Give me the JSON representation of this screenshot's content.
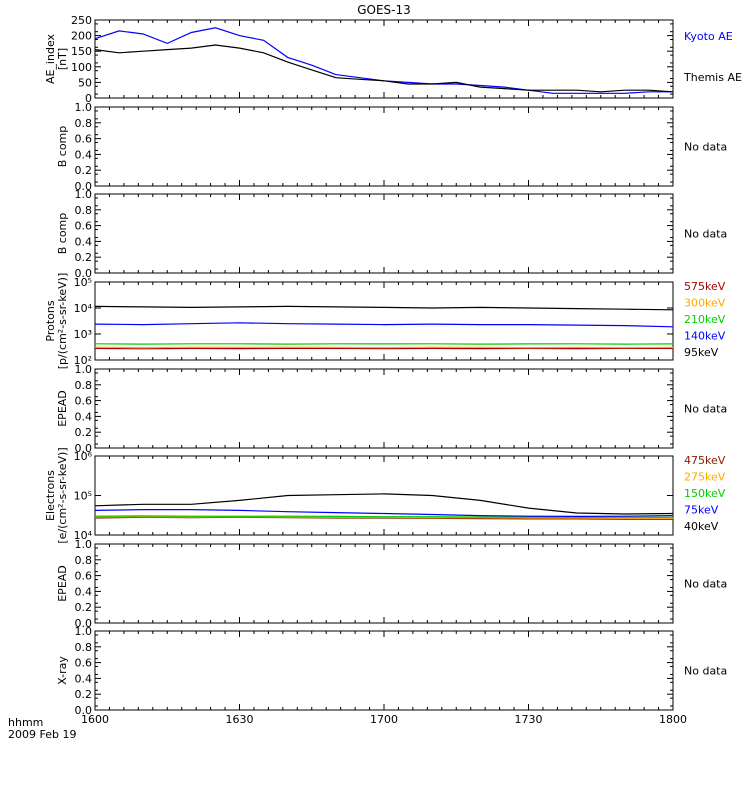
{
  "title": "GOES-13",
  "footer": {
    "xlabel": "hhmm",
    "date": "2009 Feb 19"
  },
  "x_ticks": [
    "1600",
    "1630",
    "1700",
    "1730",
    "1800"
  ],
  "colors": {
    "black": "#000000",
    "blue": "#0000ff",
    "green": "#00cc00",
    "orange": "#ffaa00",
    "red": "#aa0000",
    "brown": "#8b2000"
  },
  "chart_data": [
    {
      "type": "line",
      "ylabel": [
        "AE_index",
        "[nT]"
      ],
      "ylim": [
        0,
        250
      ],
      "y_ticks": [
        "0",
        "50",
        "100",
        "150",
        "200",
        "250"
      ],
      "x": [
        "1600",
        "1605",
        "1610",
        "1615",
        "1620",
        "1625",
        "1630",
        "1635",
        "1640",
        "1645",
        "1650",
        "1655",
        "1700",
        "1705",
        "1710",
        "1715",
        "1720",
        "1725",
        "1730",
        "1735",
        "1740",
        "1745",
        "1750",
        "1755",
        "1800"
      ],
      "series": [
        {
          "name": "Kyoto AE",
          "color": "#0000ff",
          "values": [
            190,
            215,
            205,
            175,
            210,
            225,
            200,
            185,
            130,
            105,
            75,
            65,
            55,
            50,
            45,
            45,
            40,
            35,
            25,
            15,
            15,
            15,
            15,
            20,
            20
          ]
        },
        {
          "name": "Themis AE",
          "color": "#000000",
          "values": [
            155,
            145,
            150,
            155,
            160,
            170,
            160,
            145,
            115,
            90,
            65,
            60,
            55,
            45,
            45,
            50,
            35,
            30,
            25,
            25,
            25,
            20,
            25,
            25,
            20
          ]
        }
      ]
    },
    {
      "type": "empty",
      "ylabel": [
        "B comp"
      ],
      "ylim": [
        0,
        1
      ],
      "y_ticks": [
        "0.0",
        "0.2",
        "0.4",
        "0.6",
        "0.8",
        "1.0"
      ],
      "note": "No data"
    },
    {
      "type": "empty",
      "ylabel": [
        "B comp"
      ],
      "ylim": [
        0,
        1
      ],
      "y_ticks": [
        "0.0",
        "0.2",
        "0.4",
        "0.6",
        "0.8",
        "1.0"
      ],
      "note": "No data"
    },
    {
      "type": "line",
      "log": true,
      "ylabel": [
        "Protons",
        "[p/(cm²-s-sr-keV)]"
      ],
      "ylim": [
        100,
        100000
      ],
      "y_ticks": [
        "10²",
        "10³",
        "10⁴",
        "10⁵"
      ],
      "x": [
        "1600",
        "1610",
        "1620",
        "1630",
        "1640",
        "1650",
        "1700",
        "1710",
        "1720",
        "1730",
        "1740",
        "1750",
        "1800"
      ],
      "series": [
        {
          "name": "575keV",
          "color": "#aa0000",
          "values": [
            280,
            270,
            280,
            275,
            280,
            280,
            275,
            280,
            275,
            280,
            275,
            280,
            280
          ]
        },
        {
          "name": "300keV",
          "color": "#ffaa00",
          "values": [
            310,
            300,
            310,
            305,
            310,
            305,
            300,
            310,
            305,
            300,
            305,
            300,
            305
          ]
        },
        {
          "name": "210keV",
          "color": "#00cc00",
          "values": [
            420,
            410,
            420,
            420,
            410,
            420,
            415,
            420,
            410,
            415,
            420,
            410,
            415
          ]
        },
        {
          "name": "140keV",
          "color": "#0000ff",
          "values": [
            2400,
            2300,
            2500,
            2700,
            2500,
            2400,
            2300,
            2400,
            2300,
            2300,
            2200,
            2100,
            1900
          ]
        },
        {
          "name": "95keV",
          "color": "#000000",
          "values": [
            11500,
            11000,
            10500,
            11000,
            11500,
            11000,
            10500,
            10000,
            10500,
            10000,
            9500,
            9000,
            8500
          ]
        }
      ]
    },
    {
      "type": "empty",
      "ylabel": [
        "EPEAD"
      ],
      "ylim": [
        0,
        1
      ],
      "y_ticks": [
        "0.0",
        "0.2",
        "0.4",
        "0.6",
        "0.8",
        "1.0"
      ],
      "note": "No data"
    },
    {
      "type": "line",
      "log": true,
      "ylabel": [
        "Electrons",
        "[e/(cm²-s-sr-keV)]"
      ],
      "ylim": [
        10000,
        1000000
      ],
      "y_ticks": [
        "10⁴",
        "10⁵",
        "10⁶"
      ],
      "x": [
        "1600",
        "1610",
        "1620",
        "1630",
        "1640",
        "1650",
        "1700",
        "1710",
        "1720",
        "1730",
        "1740",
        "1750",
        "1800"
      ],
      "series": [
        {
          "name": "475keV",
          "color": "#8b2000",
          "values": [
            27000,
            28000,
            27500,
            28000,
            27500,
            27000,
            27000,
            26500,
            26000,
            25500,
            25500,
            25000,
            25000
          ]
        },
        {
          "name": "275keV",
          "color": "#ffaa00",
          "values": [
            28500,
            29000,
            28500,
            29000,
            28500,
            28000,
            28000,
            27500,
            27500,
            27000,
            27000,
            26500,
            26500
          ]
        },
        {
          "name": "150keV",
          "color": "#00cc00",
          "values": [
            30000,
            30500,
            30000,
            30000,
            30000,
            29500,
            29000,
            29000,
            28500,
            28500,
            28000,
            28000,
            28000
          ]
        },
        {
          "name": "75keV",
          "color": "#0000ff",
          "values": [
            42000,
            44000,
            44000,
            42000,
            39000,
            37000,
            35000,
            33000,
            31000,
            30000,
            29500,
            30000,
            31000
          ]
        },
        {
          "name": "40keV",
          "color": "#000000",
          "values": [
            55000,
            60000,
            60000,
            75000,
            100000,
            105000,
            110000,
            100000,
            75000,
            48000,
            36000,
            34000,
            35000
          ]
        }
      ]
    },
    {
      "type": "empty",
      "ylabel": [
        "EPEAD"
      ],
      "ylim": [
        0,
        1
      ],
      "y_ticks": [
        "0.0",
        "0.2",
        "0.4",
        "0.6",
        "0.8",
        "1.0"
      ],
      "note": "No data"
    },
    {
      "type": "empty",
      "ylabel": [
        "X-ray"
      ],
      "ylim": [
        0,
        1
      ],
      "y_ticks": [
        "0.0",
        "0.2",
        "0.4",
        "0.6",
        "0.8",
        "1.0"
      ],
      "note": "No data"
    }
  ]
}
